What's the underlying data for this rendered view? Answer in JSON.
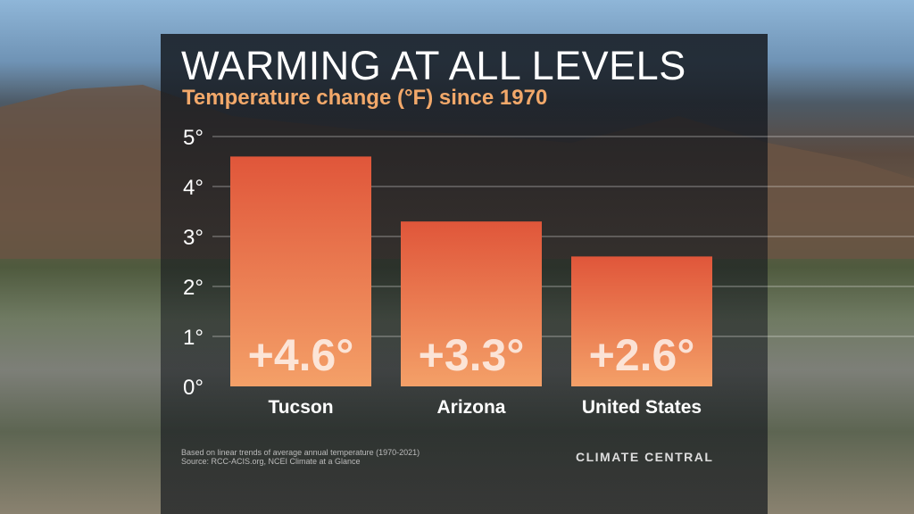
{
  "chart_data": {
    "type": "bar",
    "title": "WARMING AT ALL LEVELS",
    "subtitle": "Temperature change (°F) since 1970",
    "categories": [
      "Tucson",
      "Arizona",
      "United States"
    ],
    "values": [
      4.6,
      3.3,
      2.6
    ],
    "data_labels": [
      "+4.6°",
      "+3.3°",
      "+2.6°"
    ],
    "yticks": [
      "0°",
      "1°",
      "2°",
      "3°",
      "4°",
      "5°"
    ],
    "ylim": [
      0,
      5
    ],
    "grid": true,
    "bar_color_top": "#e0563a",
    "bar_color_bottom": "#f4a068"
  },
  "footnote": [
    "Based on linear trends of average annual temperature (1970-2021)",
    "Source: RCC-ACIS.org, NCEI Climate at a Glance"
  ],
  "logo": "CLIMATE CENTRAL"
}
